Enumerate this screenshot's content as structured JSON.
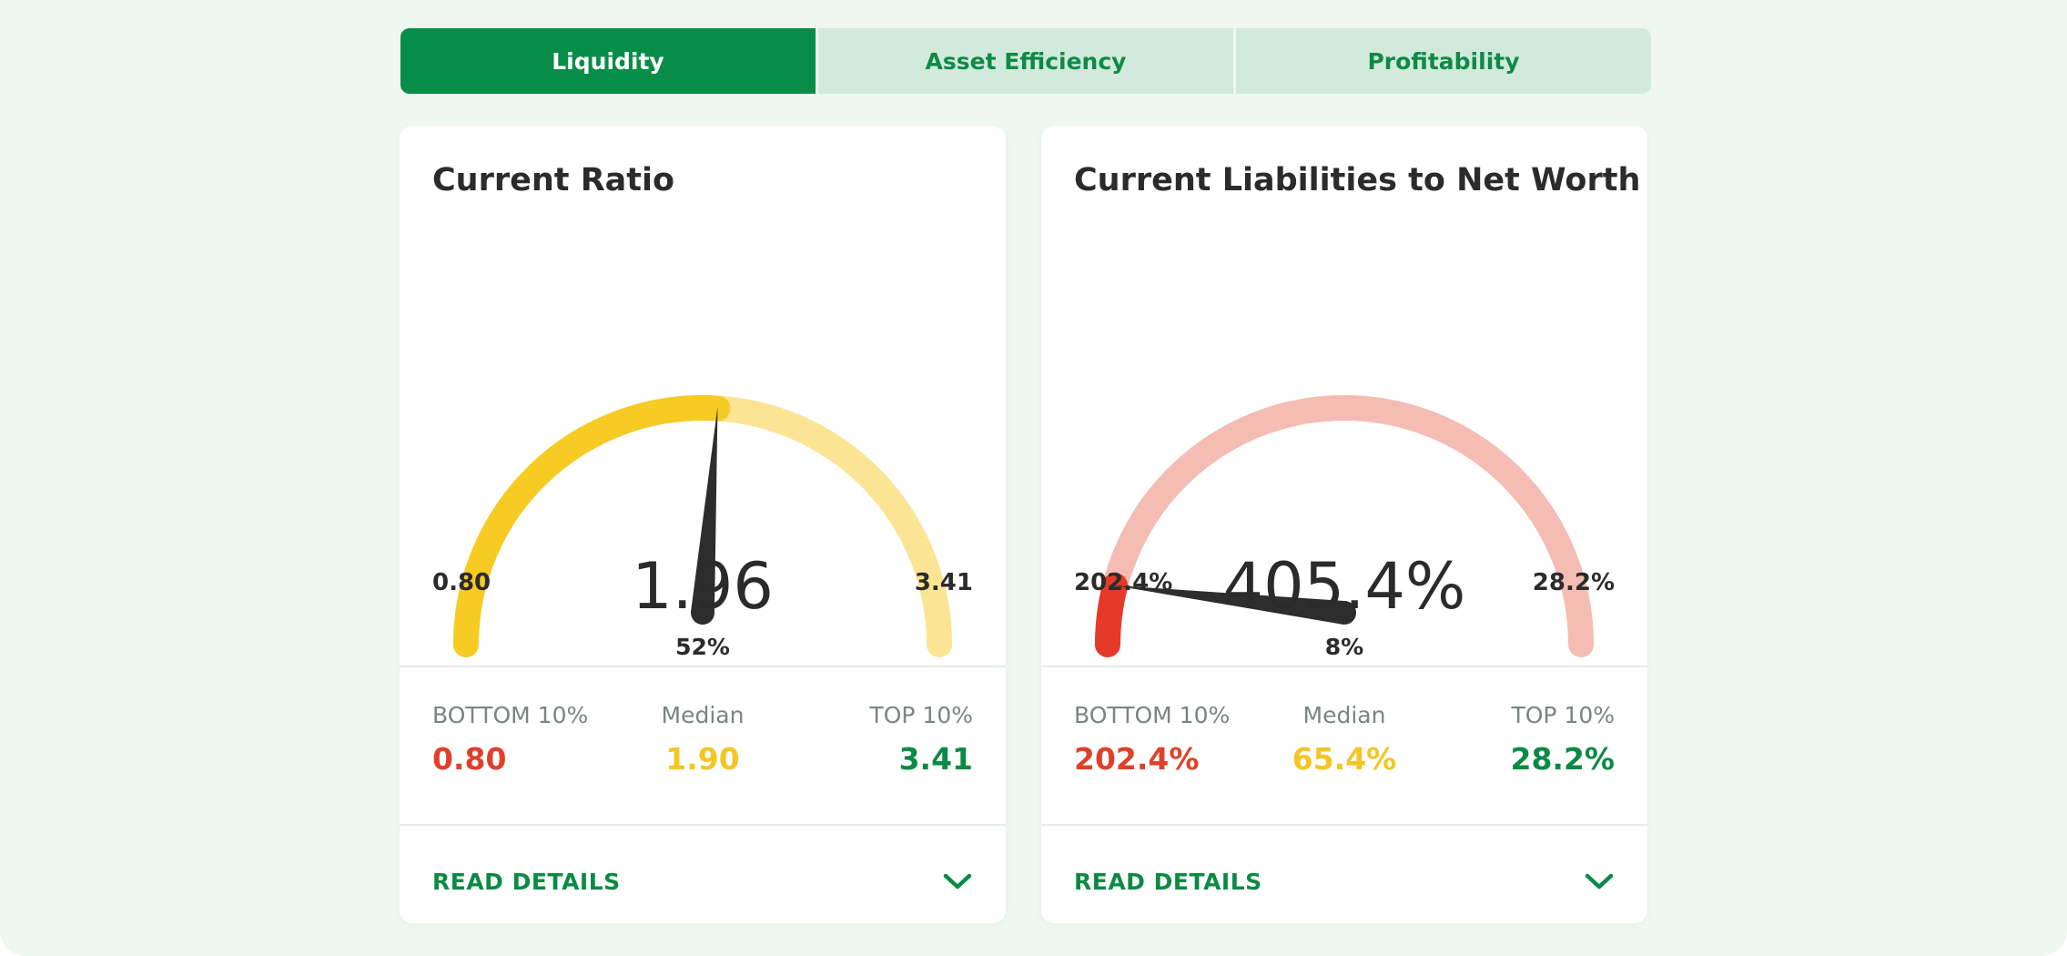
{
  "tabs": [
    {
      "label": "Liquidity",
      "active": true
    },
    {
      "label": "Asset Efficiency",
      "active": false
    },
    {
      "label": "Profitability",
      "active": false
    }
  ],
  "colors": {
    "brand_green": "#078d47",
    "tab_inactive_bg": "#d1eadc",
    "bottom_red": "#e0402a",
    "median_yellow": "#f3c623",
    "top_green": "#0b8a44"
  },
  "cards": [
    {
      "title": "Current Ratio",
      "gauge": {
        "percent_label": "52%",
        "percentile": 0.52,
        "min_label": "0.80",
        "max_label": "3.41",
        "value_label": "1.96",
        "track_color": "#fbe494",
        "fill_color": "#f5cb24"
      },
      "benchmarks": {
        "bottom": {
          "label": "BOTTOM 10%",
          "value": "0.80"
        },
        "median": {
          "label": "Median",
          "value": "1.90"
        },
        "top": {
          "label": "TOP 10%",
          "value": "3.41"
        }
      },
      "read_details_label": "READ DETAILS",
      "chevron_icon": "chevron-down-icon"
    },
    {
      "title": "Current Liabilities to Net Worth",
      "gauge": {
        "percent_label": "8%",
        "percentile": 0.08,
        "min_label": "202.4%",
        "max_label": "28.2%",
        "value_label": "405.4%",
        "track_color": "#f4bcb2",
        "fill_color": "#e6392a"
      },
      "benchmarks": {
        "bottom": {
          "label": "BOTTOM 10%",
          "value": "202.4%"
        },
        "median": {
          "label": "Median",
          "value": "65.4%"
        },
        "top": {
          "label": "TOP 10%",
          "value": "28.2%"
        }
      },
      "read_details_label": "READ DETAILS",
      "chevron_icon": "chevron-down-icon"
    }
  ]
}
